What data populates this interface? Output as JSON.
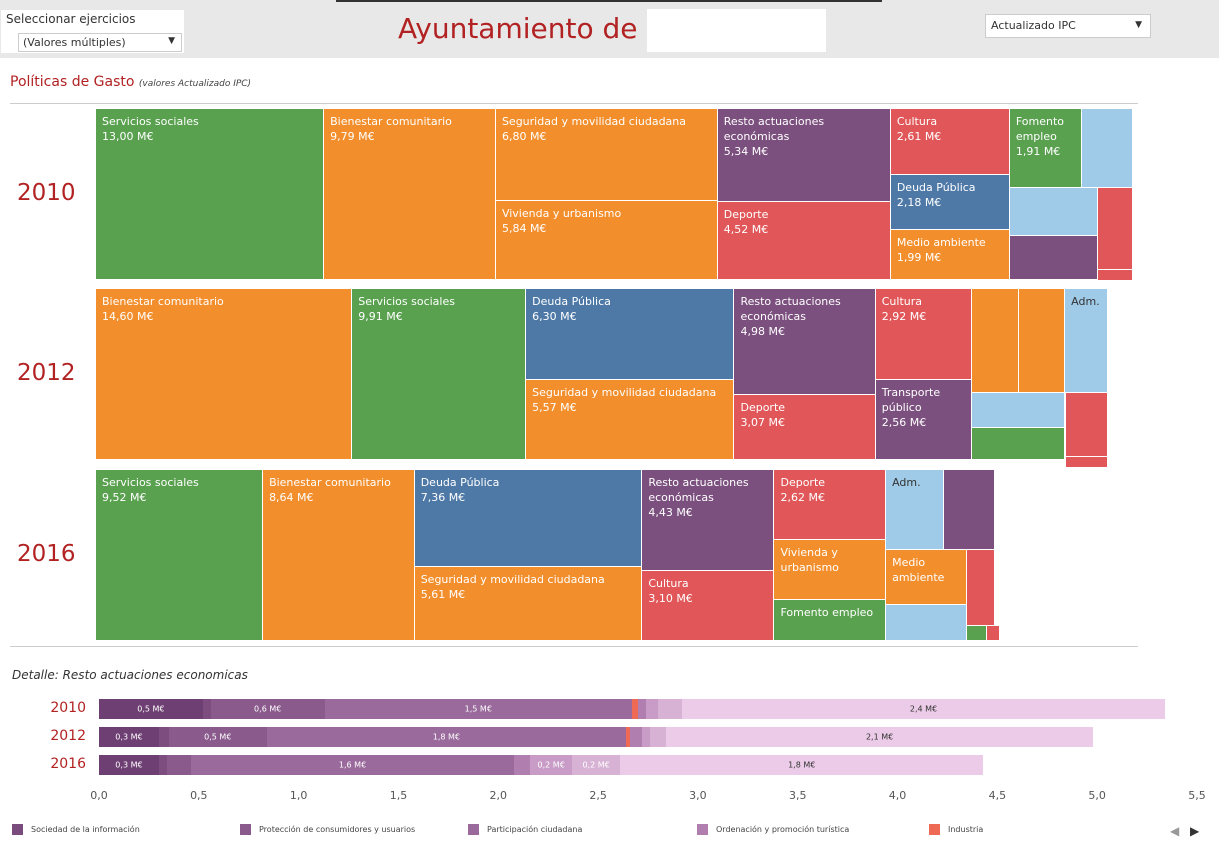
{
  "dashboard": {
    "filter_label": "Seleccionar ejercicios",
    "filter_value": "(Valores múltiples)",
    "title": "Ayuntamiento de",
    "measure_value": "Actualizado IPC",
    "section_title": "Políticas de Gasto",
    "section_subtitle": "(valores Actualizado IPC)",
    "detail_title": "Detalle: Resto actuaciones economicas"
  },
  "chart_data": [
    {
      "type": "treemap",
      "title": "2010",
      "categories": [
        "Servicios sociales",
        "Bienestar comunitario",
        "Seguridad y movilidad ciudadana",
        "Vivienda y urbanismo",
        "Resto actuaciones económicas",
        "Deporte",
        "Cultura",
        "Deuda Pública",
        "Medio ambiente",
        "Fomento empleo",
        null,
        null,
        null,
        null,
        null
      ],
      "values": [
        13.0,
        9.79,
        6.8,
        5.84,
        5.34,
        4.52,
        2.61,
        2.18,
        1.99,
        1.91,
        1.35,
        1.4,
        1.28,
        0.96,
        0.12
      ],
      "value_labels": [
        "13,00 M€",
        "9,79 M€",
        "6,80 M€",
        "5,84 M€",
        "5,34 M€",
        "4,52 M€",
        "2,61 M€",
        "2,18 M€",
        "1,99 M€",
        "1,91 M€",
        null,
        null,
        null,
        null,
        null
      ],
      "colors": [
        "#59a14f",
        "#f28e2b",
        "#f28e2b",
        "#f28e2b",
        "#7b4f7e",
        "#e15759",
        "#e15759",
        "#4e79a7",
        "#f28e2b",
        "#59a14f",
        "#a0cbe8",
        "#a0cbe8",
        "#7b4f7e",
        "#e15759",
        "#e15759"
      ]
    },
    {
      "type": "treemap",
      "title": "2012",
      "categories": [
        "Bienestar comunitario",
        "Servicios sociales",
        "Deuda Pública",
        "Seguridad y movilidad ciudadana",
        "Resto actuaciones económicas",
        "Deporte",
        "Cultura",
        "Transporte público",
        null,
        null,
        "Adm.",
        null,
        null,
        null,
        null
      ],
      "values": [
        14.6,
        9.91,
        6.3,
        5.57,
        4.98,
        3.07,
        2.92,
        2.56,
        1.63,
        1.59,
        1.49,
        1.1,
        1.0,
        0.92,
        0.04
      ],
      "value_labels": [
        "14,60 M€",
        "9,91 M€",
        "6,30 M€",
        "5,57 M€",
        "4,98 M€",
        "3,07 M€",
        "2,92 M€",
        "2,56 M€",
        null,
        null,
        null,
        null,
        null,
        null,
        null
      ],
      "colors": [
        "#f28e2b",
        "#59a14f",
        "#4e79a7",
        "#f28e2b",
        "#7b4f7e",
        "#e15759",
        "#e15759",
        "#7b4f7e",
        "#f28e2b",
        "#f28e2b",
        "#a0cbe8",
        "#a0cbe8",
        "#59a14f",
        "#e15759",
        "#e15759"
      ]
    },
    {
      "type": "treemap",
      "title": "2016",
      "categories": [
        "Servicios sociales",
        "Bienestar comunitario",
        "Deuda Pública",
        "Seguridad y movilidad ciudadana",
        "Resto actuaciones económicas",
        "Cultura",
        "Deporte",
        "Vivienda y urbanismo",
        "Fomento empleo",
        "Adm.",
        null,
        "Medio ambiente",
        null,
        null,
        null,
        null
      ],
      "values": [
        9.52,
        8.64,
        7.36,
        5.61,
        4.43,
        3.1,
        2.62,
        2.22,
        1.52,
        1.55,
        1.36,
        1.48,
        0.97,
        0.7,
        0.1,
        0.04
      ],
      "value_labels": [
        "9,52 M€",
        "8,64 M€",
        "7,36 M€",
        "5,61 M€",
        "4,43 M€",
        "3,10 M€",
        "2,62 M€",
        null,
        null,
        null,
        null,
        null,
        null,
        null,
        null,
        null
      ],
      "colors": [
        "#59a14f",
        "#f28e2b",
        "#4e79a7",
        "#f28e2b",
        "#7b4f7e",
        "#e15759",
        "#e15759",
        "#f28e2b",
        "#59a14f",
        "#a0cbe8",
        "#7b4f7e",
        "#f28e2b",
        "#a0cbe8",
        "#e15759",
        "#59a14f",
        "#e15759"
      ]
    },
    {
      "type": "bar",
      "orientation": "horizontal",
      "stacked": true,
      "categories": [
        "2010",
        "2012",
        "2016"
      ],
      "segments": [
        [
          {
            "value": 0.52,
            "value_label": "0,5 M€",
            "color": "#6e3f73"
          },
          {
            "value": 0.04,
            "color": "#7d4d80"
          },
          {
            "value": 0.57,
            "value_label": "0,6 M€",
            "color": "#8a5a8c"
          },
          {
            "value": 1.54,
            "value_label": "1,5 M€",
            "color": "#9a6a9c"
          },
          {
            "value": 0.03,
            "color": "#ef6a55"
          },
          {
            "value": 0.04,
            "color": "#b07fb0"
          },
          {
            "value": 0.06,
            "color": "#c89cc6"
          },
          {
            "value": 0.12,
            "color": "#d8b2d5"
          },
          {
            "value": 2.42,
            "value_label": "2,4 M€",
            "color": "#ebcbe7"
          }
        ],
        [
          {
            "value": 0.3,
            "value_label": "0,3 M€",
            "color": "#6e3f73"
          },
          {
            "value": 0.05,
            "color": "#7d4d80"
          },
          {
            "value": 0.49,
            "value_label": "0,5 M€",
            "color": "#8a5a8c"
          },
          {
            "value": 1.8,
            "value_label": "1,8 M€",
            "color": "#9a6a9c"
          },
          {
            "value": 0.02,
            "color": "#ef6a55"
          },
          {
            "value": 0.06,
            "color": "#b07fb0"
          },
          {
            "value": 0.04,
            "color": "#c89cc6"
          },
          {
            "value": 0.08,
            "color": "#d8b2d5"
          },
          {
            "value": 2.14,
            "value_label": "2,1 M€",
            "color": "#ebcbe7"
          }
        ],
        [
          {
            "value": 0.3,
            "value_label": "0,3 M€",
            "color": "#6e3f73"
          },
          {
            "value": 0.04,
            "color": "#7d4d80"
          },
          {
            "value": 0.12,
            "color": "#8a5a8c"
          },
          {
            "value": 1.62,
            "value_label": "1,6 M€",
            "color": "#9a6a9c"
          },
          {
            "value": 0.08,
            "color": "#b07fb0"
          },
          {
            "value": 0.21,
            "value_label": "0,2 M€",
            "color": "#c89cc6"
          },
          {
            "value": 0.24,
            "value_label": "0,2 M€",
            "color": "#d8b2d5"
          },
          {
            "value": 1.82,
            "value_label": "1,8 M€",
            "color": "#ebcbe7"
          }
        ]
      ],
      "xlim": [
        0,
        5.5
      ],
      "xticks": [
        {
          "value": 0,
          "label": "0,0"
        },
        {
          "value": 0.5,
          "label": "0,5"
        },
        {
          "value": 1,
          "label": "1,0"
        },
        {
          "value": 1.5,
          "label": "1,5"
        },
        {
          "value": 2,
          "label": "2,0"
        },
        {
          "value": 2.5,
          "label": "2,5"
        },
        {
          "value": 3,
          "label": "3,0"
        },
        {
          "value": 3.5,
          "label": "3,5"
        },
        {
          "value": 4,
          "label": "4,0"
        },
        {
          "value": 4.5,
          "label": "4,5"
        },
        {
          "value": 5,
          "label": "5,0"
        },
        {
          "value": 5.5,
          "label": "5,5"
        }
      ],
      "legend": [
        {
          "name": "Sociedad de la información",
          "color": "#7a4b7d"
        },
        {
          "name": "Protección de consumidores y usuarios",
          "color": "#8a5a8c"
        },
        {
          "name": "Participación ciudadana",
          "color": "#9a6a9c"
        },
        {
          "name": "Ordenación y promoción turística",
          "color": "#b07fb0"
        },
        {
          "name": "Industria",
          "color": "#ef6a55"
        }
      ]
    }
  ]
}
